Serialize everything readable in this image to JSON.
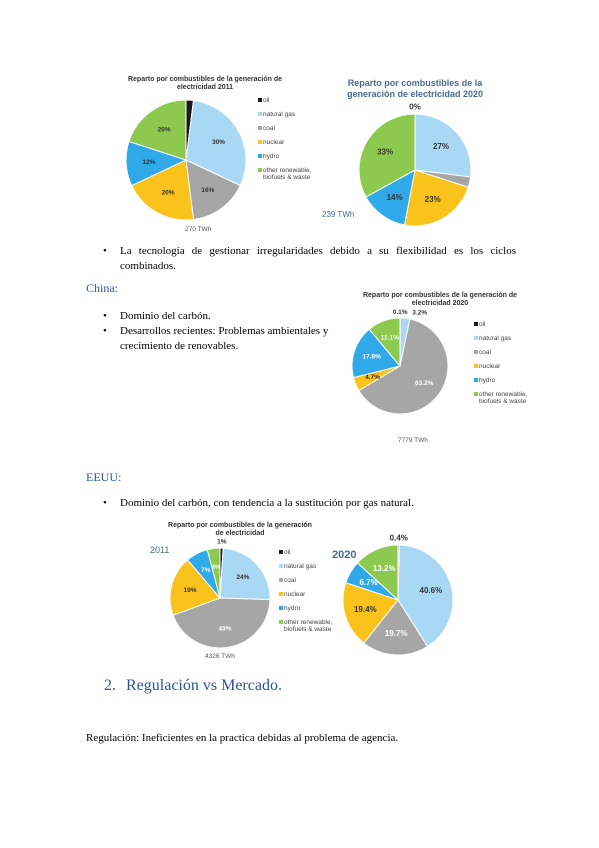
{
  "chart_data": [
    {
      "type": "pie",
      "title": "Reparto por combustibles de la generación de electricidad 2011",
      "categories": [
        "oil",
        "natural gas",
        "coal",
        "nuclear",
        "hydro",
        "other renewable, biofuels & waste"
      ],
      "values": [
        2,
        30,
        16,
        20,
        12,
        20
      ],
      "value_labels": [
        null,
        "30%",
        "16%",
        "20%",
        "12%",
        "20%"
      ],
      "colors": [
        "#1a1a1a",
        "#a9d8f5",
        "#a6a6a6",
        "#f9c31b",
        "#2fa9e8",
        "#8cc94e"
      ],
      "total_label": "270 TWh"
    },
    {
      "type": "pie",
      "title": "Reparto por combustibles de la generación de electricidad 2020",
      "values": [
        0,
        27,
        3,
        23,
        14,
        33
      ],
      "value_labels": [
        "0%",
        "27%",
        null,
        "23%",
        "14%",
        "33%"
      ],
      "colors": [
        "#1a1a1a",
        "#a9d8f5",
        "#a6a6a6",
        "#f9c31b",
        "#2fa9e8",
        "#8cc94e"
      ],
      "total_label": "239 TWh"
    },
    {
      "type": "pie",
      "title": "Reparto por combustibles de la generación de electricidad 2020",
      "categories": [
        "oil",
        "natural gas",
        "coal",
        "nuclear",
        "hydro",
        "other renewable, biofuels & waste"
      ],
      "values": [
        0.1,
        3.2,
        63.2,
        4.7,
        17.8,
        11.1
      ],
      "value_labels": [
        "0.1%",
        "3.2%",
        "63.2%",
        "4.7%",
        "17.8%",
        "11.1%"
      ],
      "colors": [
        "#1a1a1a",
        "#a9d8f5",
        "#a6a6a6",
        "#f9c31b",
        "#2fa9e8",
        "#8cc94e"
      ],
      "total_label": "7779 TWh"
    },
    {
      "type": "pie",
      "title": "Reparto por combustibles de la generación de electricidad",
      "year_label": "2011",
      "categories": [
        "oil",
        "natural gas",
        "coal",
        "nuclear",
        "hydro",
        "other renewable, biofuels & waste"
      ],
      "values": [
        1,
        24,
        43,
        19,
        7,
        4
      ],
      "value_labels": [
        "1%",
        "24%",
        "43%",
        "19%",
        "7%",
        "4%"
      ],
      "colors": [
        "#1a1a1a",
        "#a9d8f5",
        "#a6a6a6",
        "#f9c31b",
        "#2fa9e8",
        "#8cc94e"
      ],
      "total_label": "4326 TWh"
    },
    {
      "type": "pie",
      "year_label": "2020",
      "values": [
        0.4,
        40.6,
        19.7,
        19.4,
        6.7,
        13.2
      ],
      "value_labels": [
        "0.4%",
        "40.6%",
        "19.7%",
        "19.4%",
        "6.7%",
        "13.2%"
      ],
      "colors": [
        "#1a1a1a",
        "#a9d8f5",
        "#a6a6a6",
        "#f9c31b",
        "#2fa9e8",
        "#8cc94e"
      ]
    }
  ],
  "text": {
    "spain_bullet": "La tecnología de gestionar irregularidades debido a su flexibilidad es los ciclos combinados.",
    "china_heading": "China:",
    "china_bullets": [
      "Dominio del carbón.",
      "Desarrollos recientes: Problemas ambientales y crecimiento de renovables."
    ],
    "usa_heading": "EEUU:",
    "usa_bullets": [
      "Dominio del carbón, con tendencia a la sustitución por gas natural."
    ],
    "section_number": "2.",
    "section_title": "Regulación vs Mercado.",
    "regulation": "Regulación: Ineficientes en la practica debidas al problema de agencia."
  }
}
